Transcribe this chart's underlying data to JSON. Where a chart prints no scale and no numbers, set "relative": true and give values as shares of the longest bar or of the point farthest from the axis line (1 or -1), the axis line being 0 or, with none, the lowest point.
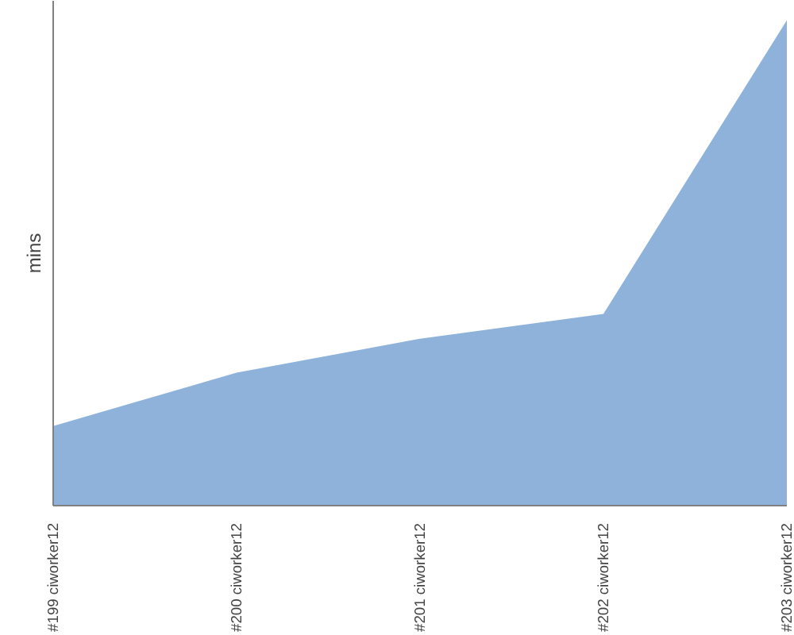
{
  "chart_data": {
    "type": "area",
    "ylabel": "mins",
    "relative": true,
    "grid": false,
    "categories": [
      "#199 ciworker12",
      "#200 ciworker12",
      "#201 ciworker12",
      "#202 ciworker12",
      "#203 ciworker12"
    ],
    "series": [
      {
        "color": "#8fb2db",
        "values": [
          0.164,
          0.274,
          0.344,
          0.395,
          1
        ]
      }
    ]
  }
}
